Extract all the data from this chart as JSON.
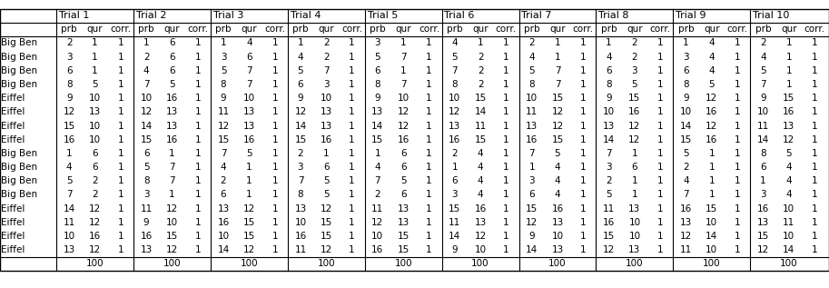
{
  "row_labels": [
    "Big Ben",
    "Big Ben",
    "Big Ben",
    "Big Ben",
    "Eiffel",
    "Eiffel",
    "Eiffel",
    "Eiffel",
    "Big Ben",
    "Big Ben",
    "Big Ben",
    "Big Ben",
    "Eiffel",
    "Eiffel",
    "Eiffel",
    "Eiffel"
  ],
  "data": [
    [
      2,
      1,
      1,
      1,
      6,
      1,
      1,
      4,
      1,
      1,
      2,
      1,
      3,
      1,
      1,
      4,
      1,
      1,
      2,
      1,
      1,
      1,
      2,
      1,
      1,
      4,
      1,
      2,
      1,
      1
    ],
    [
      3,
      1,
      1,
      2,
      6,
      1,
      3,
      6,
      1,
      4,
      2,
      1,
      5,
      7,
      1,
      5,
      2,
      1,
      4,
      1,
      1,
      4,
      2,
      1,
      3,
      4,
      1,
      4,
      1,
      1
    ],
    [
      6,
      1,
      1,
      4,
      6,
      1,
      5,
      7,
      1,
      5,
      7,
      1,
      6,
      1,
      1,
      7,
      2,
      1,
      5,
      7,
      1,
      6,
      3,
      1,
      6,
      4,
      1,
      5,
      1,
      1
    ],
    [
      8,
      5,
      1,
      7,
      5,
      1,
      8,
      7,
      1,
      6,
      3,
      1,
      8,
      7,
      1,
      8,
      2,
      1,
      8,
      7,
      1,
      8,
      5,
      1,
      8,
      5,
      1,
      7,
      1,
      1
    ],
    [
      9,
      10,
      1,
      10,
      16,
      1,
      9,
      10,
      1,
      9,
      10,
      1,
      9,
      10,
      1,
      10,
      15,
      1,
      10,
      15,
      1,
      9,
      15,
      1,
      9,
      12,
      1,
      9,
      15,
      1
    ],
    [
      12,
      13,
      1,
      12,
      13,
      1,
      11,
      13,
      1,
      12,
      13,
      1,
      13,
      12,
      1,
      12,
      14,
      1,
      11,
      12,
      1,
      10,
      16,
      1,
      10,
      16,
      1,
      10,
      16,
      1
    ],
    [
      15,
      10,
      1,
      14,
      13,
      1,
      12,
      13,
      1,
      14,
      13,
      1,
      14,
      12,
      1,
      13,
      11,
      1,
      13,
      12,
      1,
      13,
      12,
      1,
      14,
      12,
      1,
      11,
      13,
      1
    ],
    [
      16,
      10,
      1,
      15,
      16,
      1,
      15,
      16,
      1,
      15,
      16,
      1,
      15,
      16,
      1,
      16,
      15,
      1,
      16,
      15,
      1,
      14,
      12,
      1,
      15,
      16,
      1,
      14,
      12,
      1
    ],
    [
      1,
      6,
      1,
      6,
      1,
      1,
      7,
      5,
      1,
      2,
      1,
      1,
      1,
      6,
      1,
      2,
      4,
      1,
      7,
      5,
      1,
      7,
      1,
      1,
      5,
      1,
      1,
      8,
      5,
      1
    ],
    [
      4,
      6,
      1,
      5,
      7,
      1,
      4,
      1,
      1,
      3,
      6,
      1,
      4,
      6,
      1,
      1,
      4,
      1,
      1,
      4,
      1,
      3,
      6,
      1,
      2,
      1,
      1,
      6,
      4,
      1
    ],
    [
      5,
      2,
      1,
      8,
      7,
      1,
      2,
      1,
      1,
      7,
      5,
      1,
      7,
      5,
      1,
      6,
      4,
      1,
      3,
      4,
      1,
      2,
      1,
      1,
      4,
      1,
      1,
      1,
      4,
      1
    ],
    [
      7,
      2,
      1,
      3,
      1,
      1,
      6,
      1,
      1,
      8,
      5,
      1,
      2,
      6,
      1,
      3,
      4,
      1,
      6,
      4,
      1,
      5,
      1,
      1,
      7,
      1,
      1,
      3,
      4,
      1
    ],
    [
      14,
      12,
      1,
      11,
      12,
      1,
      13,
      12,
      1,
      13,
      12,
      1,
      11,
      13,
      1,
      15,
      16,
      1,
      15,
      16,
      1,
      11,
      13,
      1,
      16,
      15,
      1,
      16,
      10,
      1
    ],
    [
      11,
      12,
      1,
      9,
      10,
      1,
      16,
      15,
      1,
      10,
      15,
      1,
      12,
      13,
      1,
      11,
      13,
      1,
      12,
      13,
      1,
      16,
      10,
      1,
      13,
      10,
      1,
      13,
      11,
      1
    ],
    [
      10,
      16,
      1,
      16,
      15,
      1,
      10,
      15,
      1,
      16,
      15,
      1,
      10,
      15,
      1,
      14,
      12,
      1,
      9,
      10,
      1,
      15,
      10,
      1,
      12,
      14,
      1,
      15,
      10,
      1
    ],
    [
      13,
      12,
      1,
      13,
      12,
      1,
      14,
      12,
      1,
      11,
      12,
      1,
      16,
      15,
      1,
      9,
      10,
      1,
      14,
      13,
      1,
      12,
      13,
      1,
      11,
      10,
      1,
      12,
      14,
      1
    ]
  ],
  "footer": "100",
  "bg_color": "#ffffff",
  "text_color": "#000000",
  "border_color": "#000000",
  "font_size": 7.5,
  "title_font_size": 8.0,
  "num_trials": 10,
  "num_rows": 16,
  "sub_headers": [
    "prb",
    "qur",
    "corr."
  ]
}
